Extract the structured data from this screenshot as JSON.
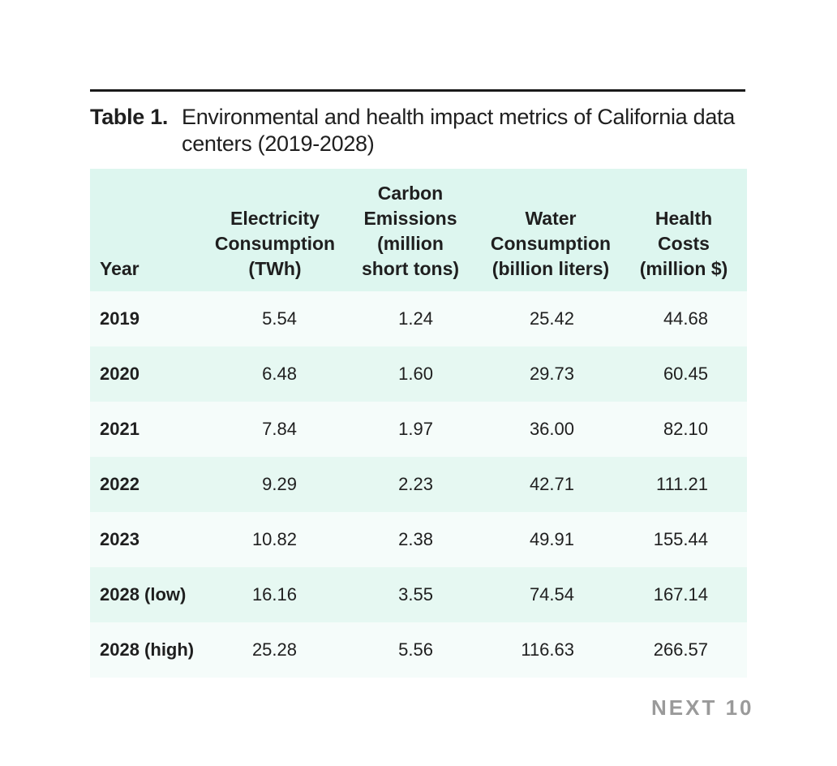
{
  "caption": {
    "label": "Table 1.",
    "text": "Environmental and health impact metrics of California data centers (2019-2028)"
  },
  "table": {
    "headers": {
      "year": "Year",
      "electricity": [
        "Electricity",
        "Consumption",
        "(TWh)"
      ],
      "carbon": [
        "Carbon",
        "Emissions",
        "(million",
        "short tons)"
      ],
      "water": [
        "Water",
        "Consumption",
        "(billion liters)"
      ],
      "health": [
        "Health",
        "Costs",
        "(million $)"
      ]
    },
    "rows": [
      {
        "year": "2019",
        "electricity": "5.54",
        "carbon": "1.24",
        "water": "25.42",
        "health": "44.68"
      },
      {
        "year": "2020",
        "electricity": "6.48",
        "carbon": "1.60",
        "water": "29.73",
        "health": "60.45"
      },
      {
        "year": "2021",
        "electricity": "7.84",
        "carbon": "1.97",
        "water": "36.00",
        "health": "82.10"
      },
      {
        "year": "2022",
        "electricity": "9.29",
        "carbon": "2.23",
        "water": "42.71",
        "health": "111.21"
      },
      {
        "year": "2023",
        "electricity": "10.82",
        "carbon": "2.38",
        "water": "49.91",
        "health": "155.44"
      },
      {
        "year": "2028 (low)",
        "electricity": "16.16",
        "carbon": "3.55",
        "water": "74.54",
        "health": "167.14"
      },
      {
        "year": "2028 (high)",
        "electricity": "25.28",
        "carbon": "5.56",
        "water": "116.63",
        "health": "266.57"
      }
    ]
  },
  "brand": {
    "name": "NEXT 10"
  },
  "colors": {
    "header_bg": "#ddf6ef",
    "row_light": "#f5fcfa",
    "row_dark": "#e6f8f2",
    "brand": "#9a9a9a"
  }
}
